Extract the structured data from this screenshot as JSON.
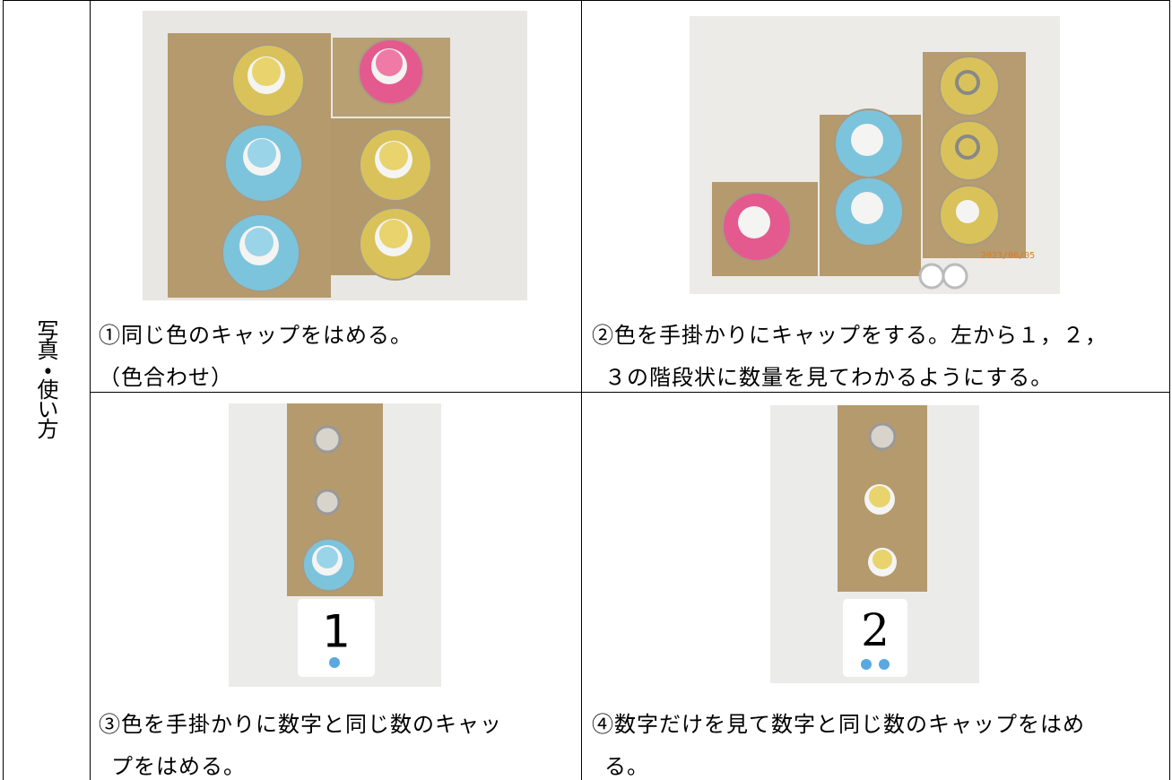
{
  "side_label": "写真・使い方",
  "cells": [
    {
      "caption": [
        "①同じ色のキャップをはめる。",
        "（色合わせ）"
      ]
    },
    {
      "caption": [
        "②色を手掛かりにキャップをする。左から１，２，",
        "３の階段状に数量を見てわかるようにする。"
      ],
      "photo_date": "2023/06/05"
    },
    {
      "caption": [
        "③色を手掛かりに数字と同じ数のキャッ",
        "プをはめる。"
      ],
      "card": "1"
    },
    {
      "caption": [
        "④数字だけを見て数字と同じ数のキャップをはめ",
        "る。"
      ],
      "card": "2"
    }
  ]
}
